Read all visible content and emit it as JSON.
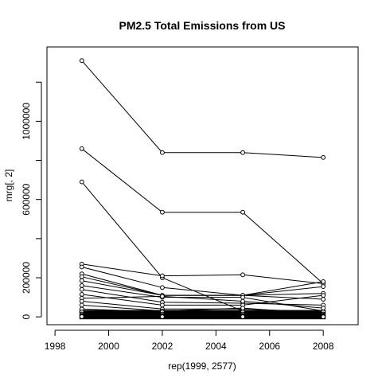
{
  "chart_data": {
    "type": "line",
    "title": "PM2.5 Total Emissions from US",
    "xlabel": "rep(1999, 2577)",
    "ylabel": "mrg[, 2]",
    "xlim": [
      1997.7,
      2009.3
    ],
    "ylim": [
      -40000,
      1380000
    ],
    "x_ticks": [
      1998,
      2000,
      2002,
      2004,
      2006,
      2008
    ],
    "x_tick_labels": [
      "1998",
      "2000",
      "2002",
      "2004",
      "2006",
      "2008"
    ],
    "y_ticks": [
      0,
      200000,
      400000,
      600000,
      800000,
      1000000,
      1200000
    ],
    "y_tick_labels": [
      "0",
      "200000",
      "",
      "600000",
      "",
      "1000000",
      ""
    ],
    "grid": false,
    "legend": "none",
    "x": [
      1999,
      2002,
      2005,
      2008
    ],
    "series": [
      {
        "values": [
          1310000,
          840000,
          840000,
          815000
        ]
      },
      {
        "values": [
          860000,
          535000,
          535000,
          170000
        ]
      },
      {
        "values": [
          690000,
          200000,
          30000,
          20000
        ]
      },
      {
        "values": [
          270000,
          210000,
          215000,
          170000
        ]
      },
      {
        "values": [
          255000,
          150000,
          110000,
          120000
        ]
      },
      {
        "values": [
          220000,
          110000,
          110000,
          180000
        ]
      },
      {
        "values": [
          205000,
          110000,
          110000,
          155000
        ]
      },
      {
        "values": [
          185000,
          110000,
          110000,
          90000
        ]
      },
      {
        "values": [
          160000,
          100000,
          100000,
          30000
        ]
      },
      {
        "values": [
          140000,
          75000,
          70000,
          60000
        ]
      },
      {
        "values": [
          115000,
          60000,
          60000,
          110000
        ]
      },
      {
        "values": [
          95000,
          105000,
          80000,
          45000
        ]
      },
      {
        "values": [
          80000,
          40000,
          40000,
          25000
        ]
      },
      {
        "values": [
          60000,
          30000,
          45000,
          15000
        ]
      },
      {
        "values": [
          40000,
          25000,
          25000,
          10000
        ]
      },
      {
        "values": [
          25000,
          15000,
          15000,
          5000
        ]
      },
      {
        "values": [
          15000,
          8000,
          8000,
          3000
        ]
      },
      {
        "values": [
          8000,
          4000,
          4000,
          1500
        ]
      },
      {
        "values": [
          4000,
          2000,
          2000,
          800
        ]
      },
      {
        "values": [
          2000,
          1000,
          1000,
          400
        ]
      },
      {
        "values": [
          1000,
          500,
          500,
          200
        ]
      }
    ],
    "dense_band": {
      "min": 0,
      "max": 35000
    }
  }
}
